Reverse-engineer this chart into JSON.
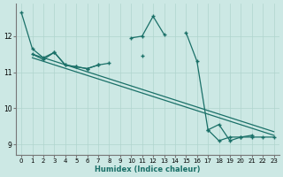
{
  "background_color": "#cce8e4",
  "grid_color": "#b0d4ce",
  "line_color": "#1a7068",
  "xlabel": "Humidex (Indice chaleur)",
  "xlim": [
    -0.5,
    23.5
  ],
  "ylim": [
    8.7,
    12.9
  ],
  "yticks": [
    9,
    10,
    11,
    12
  ],
  "xticks": [
    0,
    1,
    2,
    3,
    4,
    5,
    6,
    7,
    8,
    9,
    10,
    11,
    12,
    13,
    14,
    15,
    16,
    17,
    18,
    19,
    20,
    21,
    22,
    23
  ],
  "series_jagged1": {
    "x": [
      0,
      1,
      2,
      3,
      4,
      5,
      6,
      7,
      8,
      9,
      10,
      11,
      12,
      13,
      14,
      15,
      16,
      17,
      18,
      19,
      20,
      21,
      22,
      23
    ],
    "y": [
      12.65,
      11.65,
      11.4,
      11.55,
      11.2,
      11.15,
      11.1,
      11.2,
      null,
      null,
      11.95,
      12.0,
      12.55,
      12.05,
      null,
      12.1,
      11.3,
      9.4,
      9.1,
      9.2,
      9.2,
      9.25,
      null,
      null
    ]
  },
  "series_linear1": {
    "x": [
      1,
      23
    ],
    "y": [
      11.5,
      9.35
    ]
  },
  "series_linear2": {
    "x": [
      1,
      23
    ],
    "y": [
      11.4,
      9.25
    ]
  },
  "series_jagged2": {
    "x": [
      1,
      2,
      3,
      4,
      5,
      6,
      7,
      8,
      9,
      10,
      11,
      12,
      13,
      17,
      18,
      19,
      20,
      21,
      22,
      23
    ],
    "y": [
      11.5,
      11.35,
      11.55,
      11.2,
      11.15,
      11.1,
      11.2,
      11.25,
      null,
      null,
      11.45,
      null,
      null,
      9.4,
      9.55,
      9.1,
      9.2,
      9.2,
      9.2,
      9.2
    ]
  }
}
